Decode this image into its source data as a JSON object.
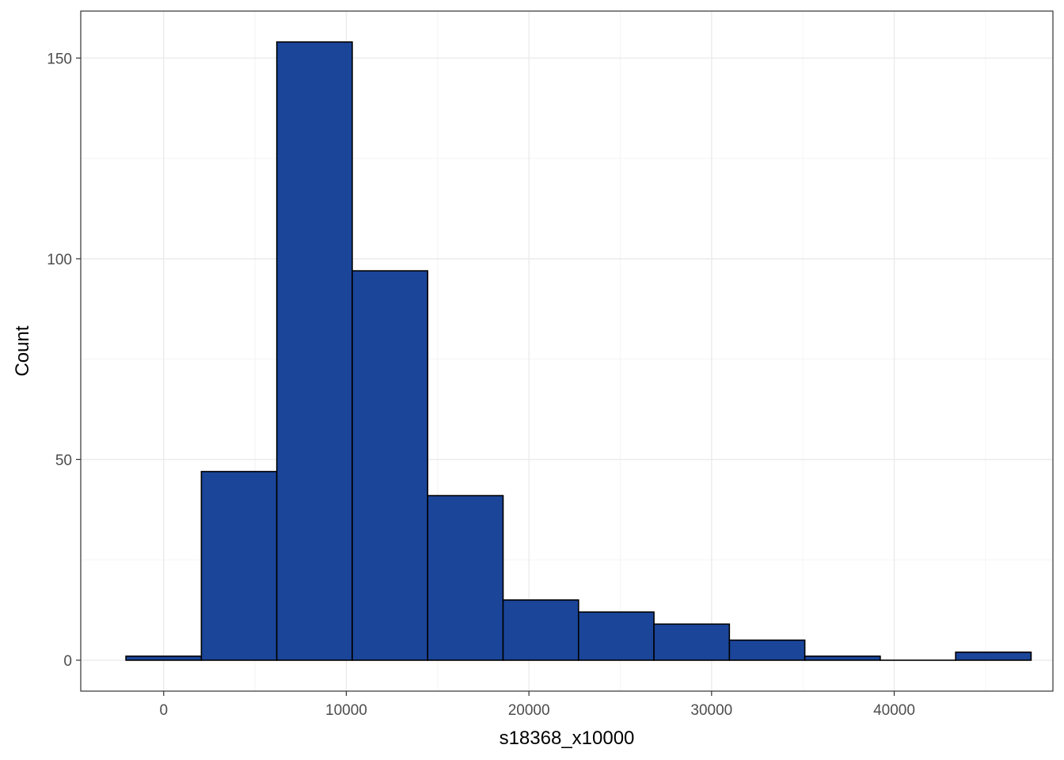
{
  "chart_data": {
    "type": "histogram",
    "title": "",
    "xlabel": "s18368_x10000",
    "ylabel": "Count",
    "bin_width": 4130,
    "bins": [
      {
        "x0": -2065,
        "x1": 2065,
        "count": 1
      },
      {
        "x0": 2065,
        "x1": 6195,
        "count": 47
      },
      {
        "x0": 6195,
        "x1": 10325,
        "count": 154
      },
      {
        "x0": 10325,
        "x1": 14455,
        "count": 97
      },
      {
        "x0": 14455,
        "x1": 18585,
        "count": 41
      },
      {
        "x0": 18585,
        "x1": 22715,
        "count": 15
      },
      {
        "x0": 22715,
        "x1": 26845,
        "count": 12
      },
      {
        "x0": 26845,
        "x1": 30975,
        "count": 9
      },
      {
        "x0": 30975,
        "x1": 35105,
        "count": 5
      },
      {
        "x0": 35105,
        "x1": 39235,
        "count": 1
      },
      {
        "x0": 39235,
        "x1": 43365,
        "count": 0
      },
      {
        "x0": 43365,
        "x1": 47495,
        "count": 2
      }
    ],
    "xlim": [
      -4540,
      48690
    ],
    "ylim": [
      -7.7,
      161.7
    ],
    "x_ticks": [
      0,
      10000,
      20000,
      30000,
      40000
    ],
    "x_tick_labels": [
      "0",
      "10000",
      "20000",
      "30000",
      "40000"
    ],
    "y_ticks": [
      0,
      50,
      100,
      150
    ],
    "y_tick_labels": [
      "0",
      "50",
      "100",
      "150"
    ],
    "x_minor_ticks": [
      5000,
      15000,
      25000,
      35000,
      45000
    ],
    "y_minor_ticks": [
      25,
      75,
      125
    ],
    "grid": true,
    "legend": "none",
    "colors": {
      "bar_fill": "#1a4599",
      "bar_outline": "#000000",
      "grid_major": "#ebebeb",
      "grid_minor": "#f4f4f4",
      "panel_border": "#333333"
    }
  }
}
